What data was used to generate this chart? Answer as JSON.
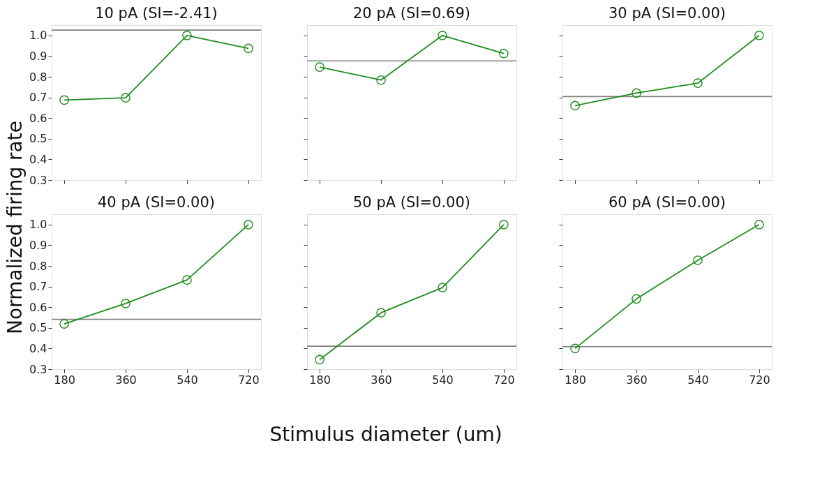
{
  "chart_data": [
    {
      "type": "line",
      "title": "10 pA (SI=-2.41)",
      "ylabel": "Normalized firing rate",
      "x": [
        180,
        360,
        540,
        720
      ],
      "series": [
        {
          "color": "#1e8c1e",
          "values": [
            0.687,
            0.698,
            1.0,
            0.937
          ]
        }
      ],
      "xlim": [
        143,
        757
      ],
      "xticks": [
        180,
        360,
        540,
        720
      ],
      "ylim": [
        0.3,
        1.05
      ],
      "yticks": [
        0.3,
        0.4,
        0.5,
        0.6,
        0.7,
        0.8,
        0.9,
        {
          "value": 1,
          "label": "1.0"
        }
      ],
      "ref_lines": [
        {
          "axis": "y",
          "value": 1.026,
          "color": "#808080"
        }
      ],
      "marker": "circle",
      "line_style": "solid",
      "tick_labels": "y",
      "grid": false
    },
    {
      "type": "line",
      "title": "20 pA (SI=0.69)",
      "x": [
        180,
        360,
        540,
        720
      ],
      "series": [
        {
          "color": "#1e8c1e",
          "values": [
            0.847,
            0.784,
            1.0,
            0.913
          ]
        }
      ],
      "xlim": [
        143,
        757
      ],
      "xticks": [
        180,
        360,
        540,
        720
      ],
      "ylim": [
        0.3,
        1.05
      ],
      "yticks": [
        0.3,
        0.4,
        0.5,
        0.6,
        0.7,
        0.8,
        0.9,
        1.0
      ],
      "ref_lines": [
        {
          "axis": "y",
          "value": 0.877,
          "color": "#808080"
        }
      ],
      "marker": "circle",
      "line_style": "solid",
      "tick_labels": false,
      "grid": false
    },
    {
      "type": "line",
      "title": "30 pA (SI=0.00)",
      "x": [
        180,
        360,
        540,
        720
      ],
      "series": [
        {
          "color": "#1e8c1e",
          "values": [
            0.66,
            0.721,
            0.769,
            1.0
          ]
        }
      ],
      "xlim": [
        143,
        757
      ],
      "xticks": [
        180,
        360,
        540,
        720
      ],
      "ylim": [
        0.3,
        1.05
      ],
      "yticks": [
        0.3,
        0.4,
        0.5,
        0.6,
        0.7,
        0.8,
        0.9,
        1.0
      ],
      "ref_lines": [
        {
          "axis": "y",
          "value": 0.704,
          "color": "#808080"
        }
      ],
      "marker": "circle",
      "line_style": "solid",
      "tick_labels": false,
      "grid": false
    },
    {
      "type": "line",
      "title": "40 pA (SI=0.00)",
      "x": [
        180,
        360,
        540,
        720
      ],
      "series": [
        {
          "color": "#1e8c1e",
          "values": [
            0.519,
            0.618,
            0.732,
            1.0
          ]
        }
      ],
      "xlim": [
        143,
        757
      ],
      "xticks": [
        180,
        360,
        540,
        720
      ],
      "ylim": [
        0.3,
        1.05
      ],
      "yticks": [
        0.3,
        0.4,
        0.5,
        0.6,
        0.7,
        0.8,
        0.9,
        {
          "value": 1,
          "label": "1.0"
        }
      ],
      "ref_lines": [
        {
          "axis": "y",
          "value": 0.541,
          "color": "#808080"
        }
      ],
      "marker": "circle",
      "line_style": "solid",
      "grid": false
    },
    {
      "type": "line",
      "title": "50 pA (SI=0.00)",
      "xlabel": "Stimulus diameter (um)",
      "x": [
        180,
        360,
        540,
        720
      ],
      "series": [
        {
          "color": "#1e8c1e",
          "values": [
            0.346,
            0.573,
            0.695,
            1.0
          ]
        }
      ],
      "xlim": [
        143,
        757
      ],
      "xticks": [
        180,
        360,
        540,
        720
      ],
      "ylim": [
        0.3,
        1.05
      ],
      "yticks": [
        0.3,
        0.4,
        0.5,
        0.6,
        0.7,
        0.8,
        0.9,
        1.0
      ],
      "ref_lines": [
        {
          "axis": "y",
          "value": 0.411,
          "color": "#808080"
        }
      ],
      "marker": "circle",
      "line_style": "solid",
      "tick_labels": "x",
      "grid": false
    },
    {
      "type": "line",
      "title": "60 pA (SI=0.00)",
      "x": [
        180,
        360,
        540,
        720
      ],
      "series": [
        {
          "color": "#1e8c1e",
          "values": [
            0.4,
            0.64,
            0.827,
            1.0
          ]
        }
      ],
      "xlim": [
        143,
        757
      ],
      "xticks": [
        180,
        360,
        540,
        720
      ],
      "ylim": [
        0.3,
        1.05
      ],
      "yticks": [
        0.3,
        0.4,
        0.5,
        0.6,
        0.7,
        0.8,
        0.9,
        1.0
      ],
      "ref_lines": [
        {
          "axis": "y",
          "value": 0.409,
          "color": "#808080"
        }
      ],
      "marker": "circle",
      "line_style": "solid",
      "tick_labels": "x",
      "grid": false
    }
  ]
}
